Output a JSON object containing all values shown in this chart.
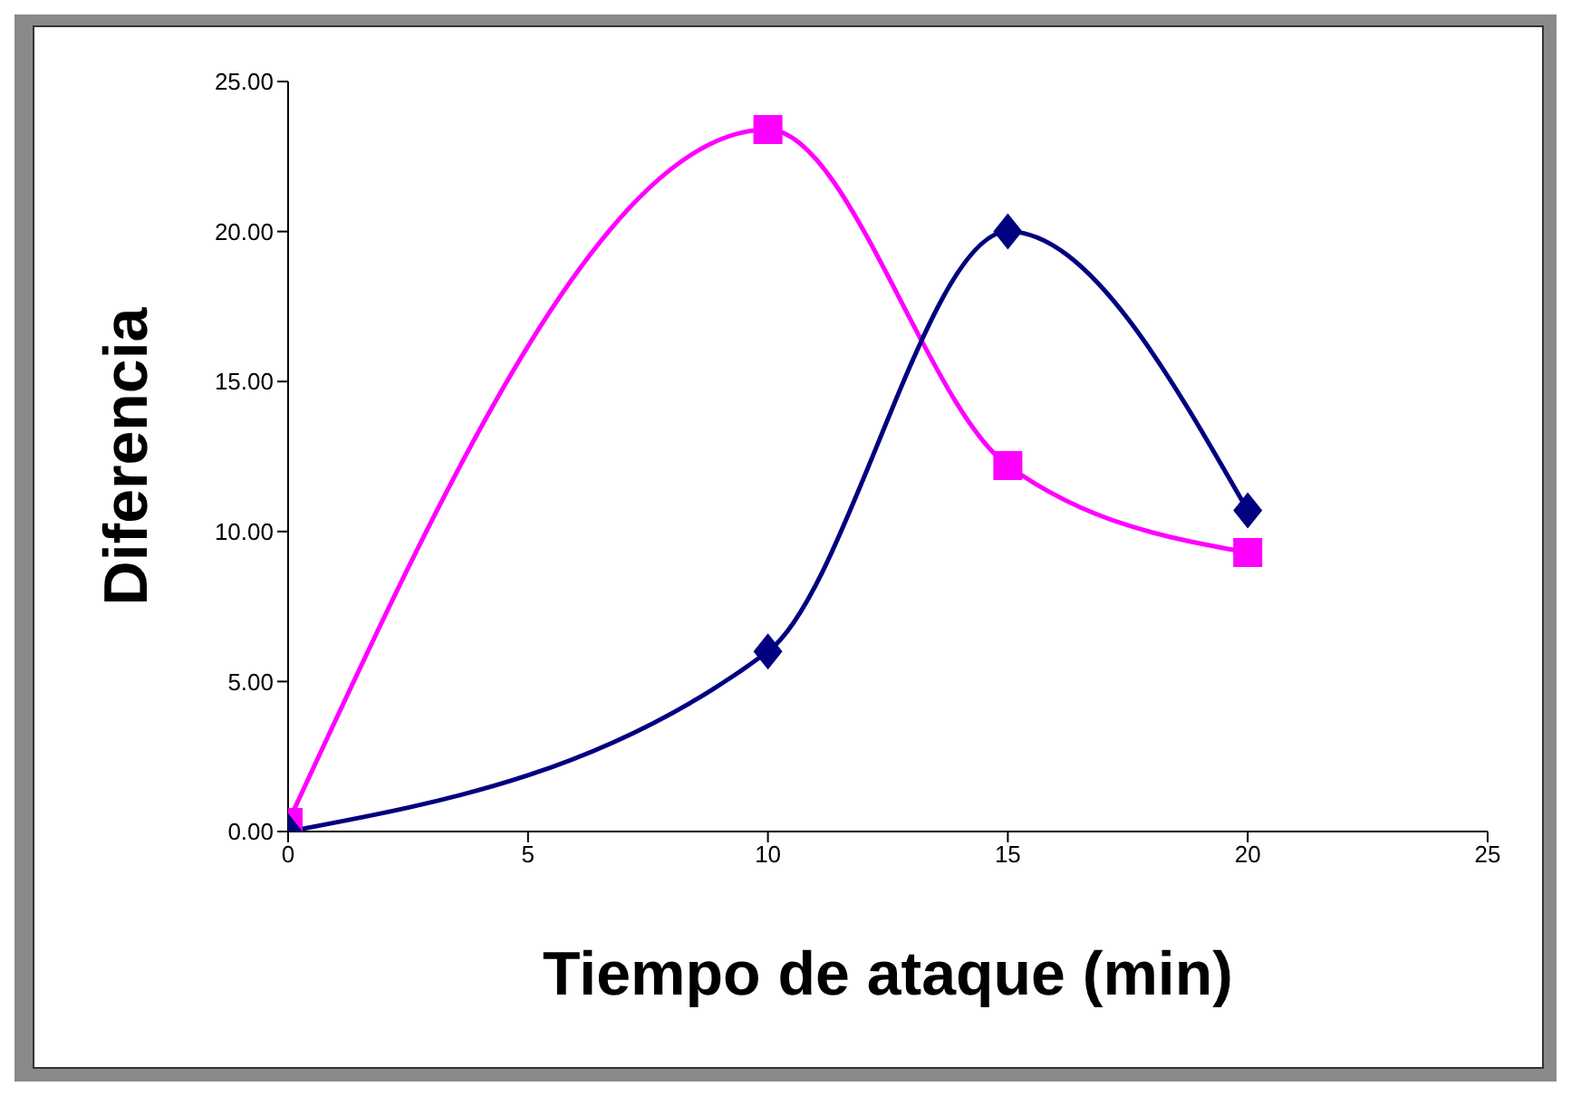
{
  "chart_data": {
    "type": "line",
    "xlabel": "Tiempo de ataque (min)",
    "ylabel": "Diferencia",
    "x": [
      0,
      10,
      15,
      20
    ],
    "series": [
      {
        "color": "#ff00ff",
        "marker": "square",
        "values": [
          0.3,
          23.4,
          12.2,
          9.3
        ]
      },
      {
        "color": "#000080",
        "marker": "diamond",
        "values": [
          0,
          6.0,
          20.0,
          10.7
        ]
      }
    ],
    "xlim": [
      0,
      25
    ],
    "xticks": [
      0,
      5,
      10,
      15,
      20,
      25
    ],
    "ylim": [
      0,
      25
    ],
    "yticks": [
      {
        "value": 0,
        "label": "0.00"
      },
      {
        "value": 5,
        "label": "5.00"
      },
      {
        "value": 10,
        "label": "10.00"
      },
      {
        "value": 15,
        "label": "15.00"
      },
      {
        "value": 20,
        "label": "20.00"
      },
      {
        "value": 25,
        "label": "25.00"
      }
    ],
    "grid": false,
    "legend": false
  }
}
